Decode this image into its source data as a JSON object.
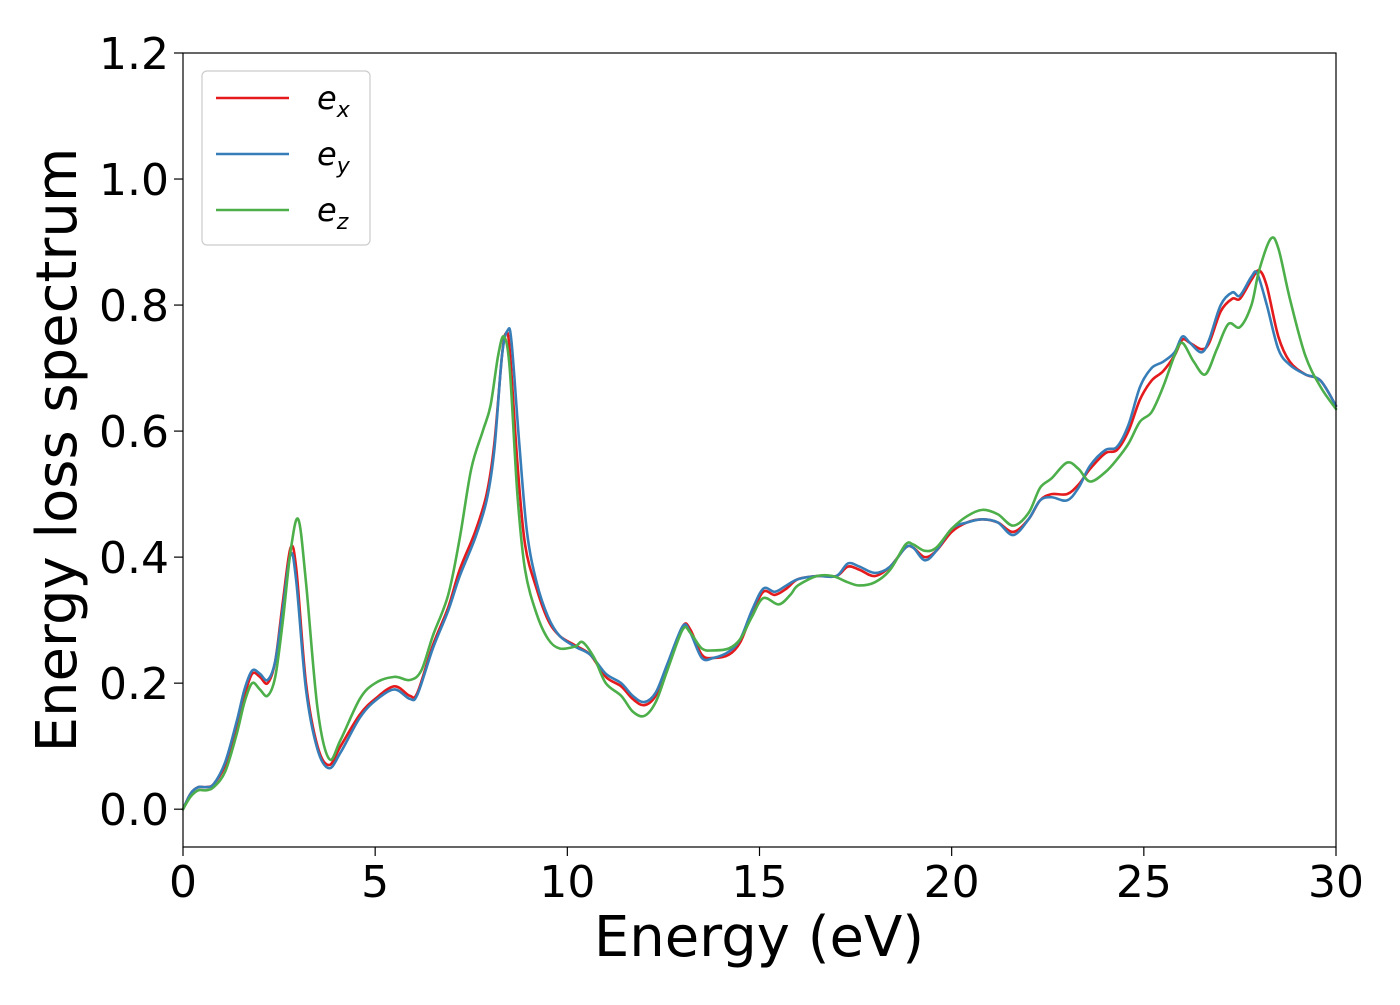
{
  "chart_data": {
    "type": "line",
    "xlabel": "Energy (eV)",
    "ylabel": "Energy loss spectrum",
    "xlim": [
      0,
      30
    ],
    "ylim": [
      -0.06,
      1.2
    ],
    "xticks": [
      0,
      5,
      10,
      15,
      20,
      25,
      30
    ],
    "yticks": [
      0.0,
      0.2,
      0.4,
      0.6,
      0.8,
      1.0,
      1.2
    ],
    "xtick_labels": [
      "0",
      "5",
      "10",
      "15",
      "20",
      "25",
      "30"
    ],
    "ytick_labels": [
      "0.0",
      "0.2",
      "0.4",
      "0.6",
      "0.8",
      "1.0",
      "1.2"
    ],
    "grid": false,
    "legend_position": "top-left",
    "series": [
      {
        "name": "e_x",
        "base": "e",
        "sub": "x",
        "color": "#e41a1c",
        "points": [
          [
            0,
            0
          ],
          [
            0.2,
            0.025
          ],
          [
            0.4,
            0.035
          ],
          [
            0.6,
            0.035
          ],
          [
            0.8,
            0.04
          ],
          [
            1.1,
            0.07
          ],
          [
            1.4,
            0.13
          ],
          [
            1.6,
            0.18
          ],
          [
            1.8,
            0.215
          ],
          [
            2.0,
            0.21
          ],
          [
            2.2,
            0.2
          ],
          [
            2.4,
            0.235
          ],
          [
            2.6,
            0.33
          ],
          [
            2.8,
            0.415
          ],
          [
            2.95,
            0.38
          ],
          [
            3.2,
            0.2
          ],
          [
            3.5,
            0.1
          ],
          [
            3.8,
            0.07
          ],
          [
            4.1,
            0.1
          ],
          [
            4.6,
            0.15
          ],
          [
            5.0,
            0.175
          ],
          [
            5.5,
            0.195
          ],
          [
            5.9,
            0.18
          ],
          [
            6.1,
            0.185
          ],
          [
            6.5,
            0.26
          ],
          [
            6.9,
            0.32
          ],
          [
            7.2,
            0.38
          ],
          [
            7.6,
            0.44
          ],
          [
            7.9,
            0.5
          ],
          [
            8.1,
            0.58
          ],
          [
            8.3,
            0.72
          ],
          [
            8.4,
            0.755
          ],
          [
            8.5,
            0.73
          ],
          [
            8.7,
            0.55
          ],
          [
            8.9,
            0.42
          ],
          [
            9.2,
            0.35
          ],
          [
            9.5,
            0.3
          ],
          [
            9.8,
            0.275
          ],
          [
            10.2,
            0.26
          ],
          [
            10.6,
            0.245
          ],
          [
            11.0,
            0.21
          ],
          [
            11.4,
            0.195
          ],
          [
            11.7,
            0.175
          ],
          [
            12.0,
            0.165
          ],
          [
            12.3,
            0.18
          ],
          [
            12.6,
            0.225
          ],
          [
            13.0,
            0.29
          ],
          [
            13.2,
            0.285
          ],
          [
            13.5,
            0.245
          ],
          [
            13.8,
            0.24
          ],
          [
            14.2,
            0.245
          ],
          [
            14.5,
            0.265
          ],
          [
            14.8,
            0.31
          ],
          [
            15.1,
            0.345
          ],
          [
            15.4,
            0.34
          ],
          [
            15.7,
            0.35
          ],
          [
            16.0,
            0.365
          ],
          [
            16.5,
            0.37
          ],
          [
            17.0,
            0.37
          ],
          [
            17.3,
            0.385
          ],
          [
            17.6,
            0.38
          ],
          [
            18.0,
            0.37
          ],
          [
            18.4,
            0.385
          ],
          [
            18.8,
            0.415
          ],
          [
            19.0,
            0.415
          ],
          [
            19.3,
            0.4
          ],
          [
            19.6,
            0.41
          ],
          [
            20.0,
            0.44
          ],
          [
            20.4,
            0.455
          ],
          [
            20.8,
            0.46
          ],
          [
            21.2,
            0.455
          ],
          [
            21.6,
            0.44
          ],
          [
            22.0,
            0.46
          ],
          [
            22.3,
            0.49
          ],
          [
            22.6,
            0.5
          ],
          [
            23.0,
            0.5
          ],
          [
            23.3,
            0.515
          ],
          [
            23.6,
            0.54
          ],
          [
            24.0,
            0.565
          ],
          [
            24.3,
            0.57
          ],
          [
            24.6,
            0.6
          ],
          [
            24.9,
            0.65
          ],
          [
            25.2,
            0.68
          ],
          [
            25.5,
            0.695
          ],
          [
            25.8,
            0.72
          ],
          [
            26.0,
            0.745
          ],
          [
            26.2,
            0.74
          ],
          [
            26.5,
            0.73
          ],
          [
            26.7,
            0.74
          ],
          [
            27.0,
            0.79
          ],
          [
            27.3,
            0.81
          ],
          [
            27.5,
            0.81
          ],
          [
            27.8,
            0.84
          ],
          [
            28.0,
            0.855
          ],
          [
            28.2,
            0.83
          ],
          [
            28.5,
            0.75
          ],
          [
            28.8,
            0.71
          ],
          [
            29.2,
            0.69
          ],
          [
            29.6,
            0.68
          ],
          [
            30.0,
            0.64
          ]
        ]
      },
      {
        "name": "e_y",
        "base": "e",
        "sub": "y",
        "color": "#377eb8",
        "points": [
          [
            0,
            0
          ],
          [
            0.2,
            0.025
          ],
          [
            0.4,
            0.035
          ],
          [
            0.6,
            0.035
          ],
          [
            0.8,
            0.04
          ],
          [
            1.1,
            0.075
          ],
          [
            1.4,
            0.14
          ],
          [
            1.6,
            0.19
          ],
          [
            1.8,
            0.22
          ],
          [
            2.0,
            0.215
          ],
          [
            2.2,
            0.205
          ],
          [
            2.4,
            0.235
          ],
          [
            2.6,
            0.32
          ],
          [
            2.8,
            0.405
          ],
          [
            2.95,
            0.36
          ],
          [
            3.2,
            0.19
          ],
          [
            3.5,
            0.095
          ],
          [
            3.8,
            0.065
          ],
          [
            4.1,
            0.09
          ],
          [
            4.6,
            0.145
          ],
          [
            5.0,
            0.172
          ],
          [
            5.5,
            0.19
          ],
          [
            5.9,
            0.175
          ],
          [
            6.1,
            0.182
          ],
          [
            6.5,
            0.255
          ],
          [
            6.9,
            0.315
          ],
          [
            7.2,
            0.37
          ],
          [
            7.6,
            0.43
          ],
          [
            7.9,
            0.49
          ],
          [
            8.1,
            0.57
          ],
          [
            8.3,
            0.72
          ],
          [
            8.45,
            0.76
          ],
          [
            8.55,
            0.74
          ],
          [
            8.75,
            0.58
          ],
          [
            8.95,
            0.44
          ],
          [
            9.2,
            0.36
          ],
          [
            9.5,
            0.305
          ],
          [
            9.8,
            0.275
          ],
          [
            10.2,
            0.258
          ],
          [
            10.6,
            0.245
          ],
          [
            11.0,
            0.215
          ],
          [
            11.4,
            0.2
          ],
          [
            11.7,
            0.18
          ],
          [
            12.0,
            0.17
          ],
          [
            12.3,
            0.185
          ],
          [
            12.6,
            0.23
          ],
          [
            13.0,
            0.29
          ],
          [
            13.2,
            0.28
          ],
          [
            13.5,
            0.24
          ],
          [
            13.8,
            0.24
          ],
          [
            14.2,
            0.25
          ],
          [
            14.5,
            0.27
          ],
          [
            14.8,
            0.315
          ],
          [
            15.1,
            0.35
          ],
          [
            15.4,
            0.345
          ],
          [
            15.7,
            0.355
          ],
          [
            16.0,
            0.365
          ],
          [
            16.5,
            0.37
          ],
          [
            17.0,
            0.37
          ],
          [
            17.3,
            0.39
          ],
          [
            17.6,
            0.385
          ],
          [
            18.0,
            0.375
          ],
          [
            18.4,
            0.385
          ],
          [
            18.8,
            0.415
          ],
          [
            19.0,
            0.415
          ],
          [
            19.3,
            0.395
          ],
          [
            19.6,
            0.41
          ],
          [
            20.0,
            0.445
          ],
          [
            20.4,
            0.455
          ],
          [
            20.8,
            0.46
          ],
          [
            21.2,
            0.455
          ],
          [
            21.6,
            0.435
          ],
          [
            22.0,
            0.46
          ],
          [
            22.3,
            0.49
          ],
          [
            22.6,
            0.495
          ],
          [
            23.0,
            0.49
          ],
          [
            23.3,
            0.51
          ],
          [
            23.6,
            0.545
          ],
          [
            24.0,
            0.57
          ],
          [
            24.3,
            0.575
          ],
          [
            24.6,
            0.61
          ],
          [
            24.9,
            0.67
          ],
          [
            25.2,
            0.7
          ],
          [
            25.5,
            0.71
          ],
          [
            25.8,
            0.725
          ],
          [
            26.0,
            0.75
          ],
          [
            26.2,
            0.74
          ],
          [
            26.5,
            0.725
          ],
          [
            26.7,
            0.745
          ],
          [
            27.0,
            0.8
          ],
          [
            27.3,
            0.82
          ],
          [
            27.5,
            0.815
          ],
          [
            27.8,
            0.845
          ],
          [
            27.95,
            0.85
          ],
          [
            28.2,
            0.8
          ],
          [
            28.5,
            0.73
          ],
          [
            28.8,
            0.705
          ],
          [
            29.2,
            0.69
          ],
          [
            29.6,
            0.68
          ],
          [
            30.0,
            0.64
          ]
        ]
      },
      {
        "name": "e_z",
        "base": "e",
        "sub": "z",
        "color": "#4daf4a",
        "points": [
          [
            0,
            0
          ],
          [
            0.2,
            0.02
          ],
          [
            0.4,
            0.03
          ],
          [
            0.6,
            0.03
          ],
          [
            0.8,
            0.035
          ],
          [
            1.1,
            0.06
          ],
          [
            1.4,
            0.12
          ],
          [
            1.6,
            0.17
          ],
          [
            1.8,
            0.2
          ],
          [
            2.0,
            0.19
          ],
          [
            2.2,
            0.18
          ],
          [
            2.4,
            0.21
          ],
          [
            2.6,
            0.3
          ],
          [
            2.8,
            0.41
          ],
          [
            3.0,
            0.46
          ],
          [
            3.2,
            0.36
          ],
          [
            3.5,
            0.16
          ],
          [
            3.8,
            0.08
          ],
          [
            4.1,
            0.11
          ],
          [
            4.6,
            0.175
          ],
          [
            5.0,
            0.2
          ],
          [
            5.5,
            0.21
          ],
          [
            5.9,
            0.205
          ],
          [
            6.2,
            0.22
          ],
          [
            6.5,
            0.275
          ],
          [
            6.9,
            0.34
          ],
          [
            7.2,
            0.43
          ],
          [
            7.5,
            0.54
          ],
          [
            7.8,
            0.6
          ],
          [
            8.0,
            0.64
          ],
          [
            8.2,
            0.72
          ],
          [
            8.35,
            0.75
          ],
          [
            8.5,
            0.7
          ],
          [
            8.7,
            0.5
          ],
          [
            8.9,
            0.38
          ],
          [
            9.2,
            0.31
          ],
          [
            9.5,
            0.27
          ],
          [
            9.8,
            0.255
          ],
          [
            10.2,
            0.258
          ],
          [
            10.4,
            0.265
          ],
          [
            10.7,
            0.24
          ],
          [
            11.0,
            0.2
          ],
          [
            11.4,
            0.18
          ],
          [
            11.7,
            0.155
          ],
          [
            12.0,
            0.148
          ],
          [
            12.3,
            0.17
          ],
          [
            12.6,
            0.22
          ],
          [
            13.0,
            0.285
          ],
          [
            13.2,
            0.28
          ],
          [
            13.5,
            0.255
          ],
          [
            13.8,
            0.252
          ],
          [
            14.2,
            0.255
          ],
          [
            14.5,
            0.27
          ],
          [
            14.8,
            0.305
          ],
          [
            15.1,
            0.335
          ],
          [
            15.5,
            0.325
          ],
          [
            15.8,
            0.34
          ],
          [
            16.0,
            0.355
          ],
          [
            16.5,
            0.37
          ],
          [
            16.9,
            0.37
          ],
          [
            17.3,
            0.36
          ],
          [
            17.6,
            0.355
          ],
          [
            18.0,
            0.36
          ],
          [
            18.4,
            0.38
          ],
          [
            18.8,
            0.42
          ],
          [
            19.0,
            0.42
          ],
          [
            19.3,
            0.41
          ],
          [
            19.6,
            0.415
          ],
          [
            20.0,
            0.445
          ],
          [
            20.4,
            0.465
          ],
          [
            20.8,
            0.475
          ],
          [
            21.2,
            0.468
          ],
          [
            21.6,
            0.45
          ],
          [
            22.0,
            0.47
          ],
          [
            22.3,
            0.51
          ],
          [
            22.6,
            0.525
          ],
          [
            23.0,
            0.55
          ],
          [
            23.3,
            0.54
          ],
          [
            23.6,
            0.52
          ],
          [
            24.0,
            0.535
          ],
          [
            24.3,
            0.555
          ],
          [
            24.6,
            0.58
          ],
          [
            24.9,
            0.615
          ],
          [
            25.2,
            0.63
          ],
          [
            25.5,
            0.67
          ],
          [
            25.8,
            0.72
          ],
          [
            26.0,
            0.74
          ],
          [
            26.3,
            0.71
          ],
          [
            26.6,
            0.69
          ],
          [
            26.9,
            0.73
          ],
          [
            27.2,
            0.77
          ],
          [
            27.5,
            0.765
          ],
          [
            27.8,
            0.8
          ],
          [
            28.0,
            0.855
          ],
          [
            28.3,
            0.905
          ],
          [
            28.5,
            0.89
          ],
          [
            28.8,
            0.81
          ],
          [
            29.2,
            0.72
          ],
          [
            29.6,
            0.67
          ],
          [
            30.0,
            0.635
          ]
        ]
      }
    ]
  }
}
